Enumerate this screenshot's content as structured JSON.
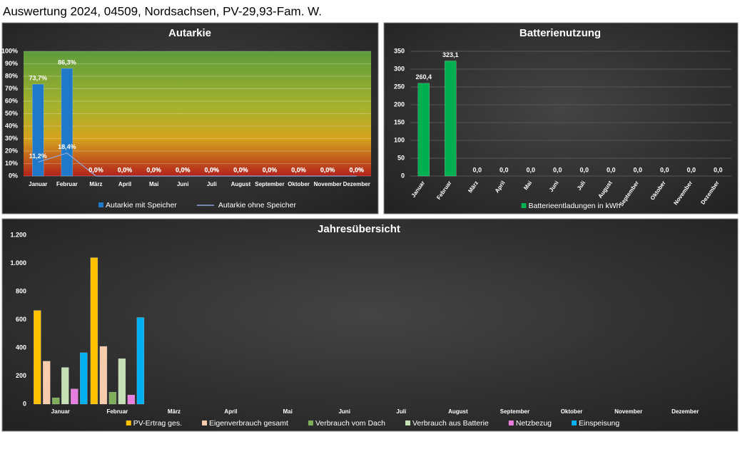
{
  "page_title": "Auswertung 2024, 04509, Nordsachsen, PV-29,93-Fam. W.",
  "chart_data": [
    {
      "type": "bar",
      "title": "Autarkie",
      "categories": [
        "Januar",
        "Februar",
        "März",
        "April",
        "Mai",
        "Juni",
        "Juli",
        "August",
        "September",
        "Oktober",
        "November",
        "Dezember"
      ],
      "series": [
        {
          "name": "Autarkie mit Speicher",
          "color": "#1f78c8",
          "values": [
            73.7,
            86.3,
            0,
            0,
            0,
            0,
            0,
            0,
            0,
            0,
            0,
            0
          ],
          "value_labels": [
            "73,7%",
            "86,3%",
            "0,0%",
            "0,0%",
            "0,0%",
            "0,0%",
            "0,0%",
            "0,0%",
            "0,0%",
            "0,0%",
            "0,0%",
            "0,0%"
          ]
        },
        {
          "name": "Autarkie ohne Speicher",
          "type": "line",
          "color": "#8faadc",
          "values": [
            11.2,
            18.4,
            0,
            0,
            0,
            0,
            0,
            0,
            0,
            0,
            0,
            0
          ],
          "value_labels": [
            "11,2%",
            "18,4%",
            "0,0%",
            "0,0%",
            "0,0%",
            "0,0%",
            "0,0%",
            "0,0%",
            "0,0%",
            "0,0%",
            "0,0%",
            "0,0%"
          ]
        }
      ],
      "ylim": [
        0,
        100
      ],
      "yticks": [
        {
          "value": 0,
          "label": "0%"
        },
        {
          "value": 10,
          "label": "10%"
        },
        {
          "value": 20,
          "label": "20%"
        },
        {
          "value": 30,
          "label": "30%"
        },
        {
          "value": 40,
          "label": "40%"
        },
        {
          "value": 50,
          "label": "50%"
        },
        {
          "value": 60,
          "label": "60%"
        },
        {
          "value": 70,
          "label": "70%"
        },
        {
          "value": 80,
          "label": "80%"
        },
        {
          "value": 90,
          "label": "90%"
        },
        {
          "value": 100,
          "label": "100%"
        }
      ],
      "grid": true
    },
    {
      "type": "bar",
      "title": "Batterienutzung",
      "categories": [
        "Januar",
        "Februar",
        "März",
        "April",
        "Mai",
        "Juni",
        "Juli",
        "August",
        "September",
        "Oktober",
        "November",
        "Dezember"
      ],
      "series": [
        {
          "name": "Batterieentladungen in kWh",
          "color": "#00b050",
          "values": [
            260.4,
            323.1,
            0,
            0,
            0,
            0,
            0,
            0,
            0,
            0,
            0,
            0
          ],
          "value_labels": [
            "260,4",
            "323,1",
            "0,0",
            "0,0",
            "0,0",
            "0,0",
            "0,0",
            "0,0",
            "0,0",
            "0,0",
            "0,0",
            "0,0"
          ]
        }
      ],
      "ylim": [
        0,
        350
      ],
      "yticks": [
        0,
        50,
        100,
        150,
        200,
        250,
        300,
        350
      ],
      "grid": true
    },
    {
      "type": "bar",
      "title": "Jahresübersicht",
      "categories": [
        "Januar",
        "Februar",
        "März",
        "April",
        "Mai",
        "Juni",
        "Juli",
        "August",
        "September",
        "Oktober",
        "November",
        "Dezember"
      ],
      "series": [
        {
          "name": "PV-Ertrag ges.",
          "color": "#ffc000",
          "values": [
            665,
            1040,
            0,
            0,
            0,
            0,
            0,
            0,
            0,
            0,
            0,
            0
          ]
        },
        {
          "name": "Eigenverbrauch gesamt",
          "color": "#f8cbad",
          "values": [
            305,
            410,
            0,
            0,
            0,
            0,
            0,
            0,
            0,
            0,
            0,
            0
          ]
        },
        {
          "name": "Verbrauch vom Dach",
          "color": "#7fae5a",
          "values": [
            45,
            85,
            0,
            0,
            0,
            0,
            0,
            0,
            0,
            0,
            0,
            0
          ]
        },
        {
          "name": "Verbrauch aus Batterie",
          "color": "#c5e0b4",
          "values": [
            260,
            323,
            0,
            0,
            0,
            0,
            0,
            0,
            0,
            0,
            0,
            0
          ]
        },
        {
          "name": "Netzbezug",
          "color": "#e87de0",
          "values": [
            108,
            65,
            0,
            0,
            0,
            0,
            0,
            0,
            0,
            0,
            0,
            0
          ]
        },
        {
          "name": "Einspeisung",
          "color": "#00b0f0",
          "values": [
            365,
            615,
            0,
            0,
            0,
            0,
            0,
            0,
            0,
            0,
            0,
            0
          ]
        }
      ],
      "ylim": [
        0,
        1200
      ],
      "yticks": [
        0,
        200,
        400,
        600,
        800,
        {
          "value": 1000,
          "label": "1.000"
        },
        {
          "value": 1200,
          "label": "1.200"
        }
      ],
      "grid": false
    }
  ]
}
